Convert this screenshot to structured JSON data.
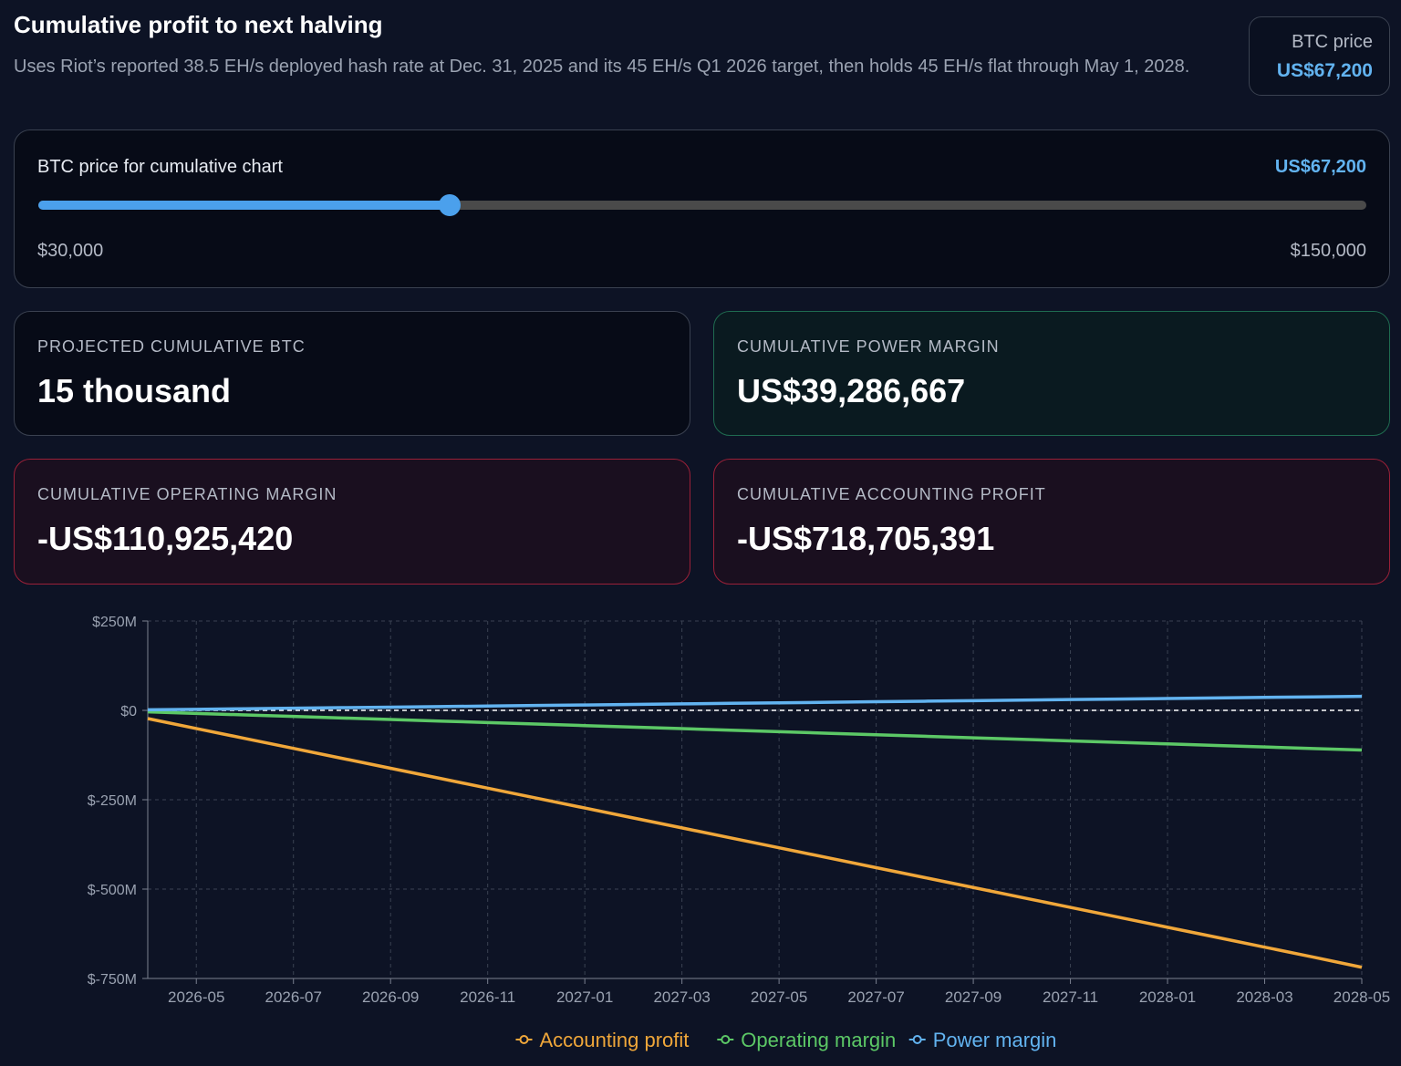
{
  "header": {
    "title": "Cumulative profit to next halving",
    "subtitle": "Uses Riot’s reported 38.5 EH/s deployed hash rate at Dec. 31, 2025 and its 45 EH/s Q1 2026 target, then holds 45 EH/s flat through May 1, 2028."
  },
  "price_box": {
    "label": "BTC price",
    "value": "US$67,200"
  },
  "slider": {
    "label": "BTC price for cumulative chart",
    "value_label": "US$67,200",
    "value": 67200,
    "min": 30000,
    "max": 150000,
    "min_label": "$30,000",
    "max_label": "$150,000"
  },
  "cards": [
    {
      "label": "PROJECTED CUMULATIVE BTC",
      "value": "15 thousand"
    },
    {
      "label": "CUMULATIVE POWER MARGIN",
      "value": "US$39,286,667"
    },
    {
      "label": "CUMULATIVE OPERATING MARGIN",
      "value": "-US$110,925,420"
    },
    {
      "label": "CUMULATIVE ACCOUNTING PROFIT",
      "value": "-US$718,705,391"
    }
  ],
  "chart_data": {
    "type": "line",
    "x": [
      "2026-04",
      "2026-05",
      "2026-06",
      "2026-07",
      "2026-08",
      "2026-09",
      "2026-10",
      "2026-11",
      "2026-12",
      "2027-01",
      "2027-02",
      "2027-03",
      "2027-04",
      "2027-05",
      "2027-06",
      "2027-07",
      "2027-08",
      "2027-09",
      "2027-10",
      "2027-11",
      "2027-12",
      "2028-01",
      "2028-02",
      "2028-03",
      "2028-04",
      "2028-05"
    ],
    "series": [
      {
        "name": "Accounting profit",
        "color": "#f0a73a",
        "values": [
          -23000000,
          -50800000,
          -78600000,
          -106400000,
          -134200000,
          -162000000,
          -189800000,
          -217600000,
          -245400000,
          -273200000,
          -301000000,
          -328800000,
          -356600000,
          -384400000,
          -412200000,
          -440000000,
          -467800000,
          -495600000,
          -523400000,
          -551200000,
          -579000000,
          -606800000,
          -634600000,
          -662400000,
          -690200000,
          -718705391
        ]
      },
      {
        "name": "Operating margin",
        "color": "#5cc866",
        "values": [
          -4200000,
          -8470000,
          -12740000,
          -17010000,
          -21280000,
          -25550000,
          -29820000,
          -34090000,
          -38360000,
          -42630000,
          -46900000,
          -51170000,
          -55440000,
          -59710000,
          -63980000,
          -68250000,
          -72520000,
          -76790000,
          -81060000,
          -85330000,
          -89600000,
          -93870000,
          -98140000,
          -102410000,
          -106680000,
          -110925420
        ]
      },
      {
        "name": "Power margin",
        "color": "#62b3f0",
        "values": [
          1500000,
          3010000,
          4520000,
          6030000,
          7540000,
          9050000,
          10560000,
          12070000,
          13580000,
          15090000,
          16600000,
          18110000,
          19620000,
          21130000,
          22640000,
          24150000,
          25660000,
          27170000,
          28680000,
          30190000,
          31700000,
          33210000,
          34720000,
          36230000,
          37740000,
          39286667
        ]
      }
    ],
    "xlim": [
      "2026-04",
      "2028-05"
    ],
    "xticks": [
      "2026-05",
      "2026-07",
      "2026-09",
      "2026-11",
      "2027-01",
      "2027-03",
      "2027-05",
      "2027-07",
      "2027-09",
      "2027-11",
      "2028-01",
      "2028-03",
      "2028-05"
    ],
    "ylim": [
      -750000000,
      250000000
    ],
    "yticks": [
      {
        "value": -750000000,
        "label": "$-750M"
      },
      {
        "value": -500000000,
        "label": "$-500M"
      },
      {
        "value": -250000000,
        "label": "$-250M"
      },
      {
        "value": 0,
        "label": "$0"
      },
      {
        "value": 250000000,
        "label": "$250M"
      }
    ],
    "grid": true,
    "legend": "bottom"
  }
}
